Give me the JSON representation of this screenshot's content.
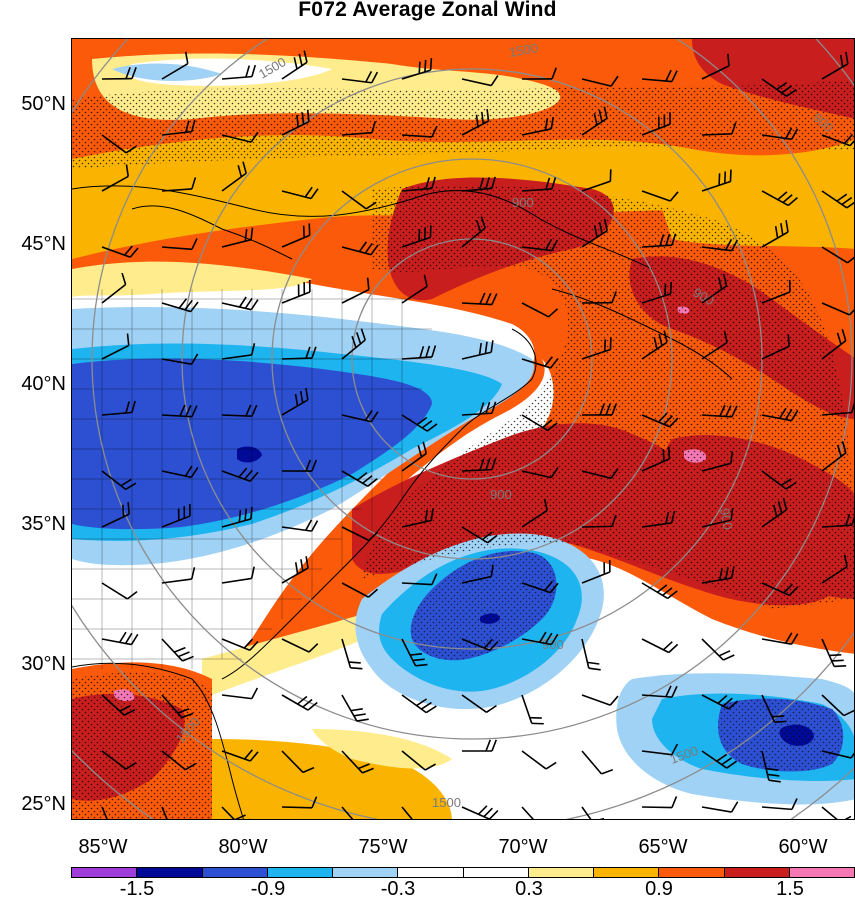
{
  "title": "F072 Average Zonal Wind",
  "axes": {
    "lat_labels": [
      "50°N",
      "45°N",
      "40°N",
      "35°N",
      "30°N",
      "25°N"
    ],
    "lon_labels": [
      "85°W",
      "80°W",
      "75°W",
      "70°W",
      "65°W",
      "60°W"
    ]
  },
  "contour_labels": [
    "1500",
    "1500",
    "900",
    "900",
    "900",
    "900",
    "900",
    "900",
    "1500",
    "1500",
    "1500"
  ],
  "colorbar": {
    "colors": [
      "#a03cd8",
      "#000a96",
      "#2d50d2",
      "#1eb4f0",
      "#a0d2f5",
      "#ffffff",
      "#ffffff",
      "#ffec8c",
      "#fab400",
      "#fa5a0a",
      "#c81e1e",
      "#f578b4"
    ],
    "labels": [
      "-1.5",
      "-0.9",
      "-0.3",
      "0.3",
      "0.9",
      "1.5"
    ]
  },
  "legend_colors": {
    "strong_negative": "#000a96",
    "negative": "#2d50d2",
    "moderate_negative": "#1eb4f0",
    "weak_negative": "#a0d2f5",
    "neutral": "#ffffff",
    "weak_positive": "#ffec8c",
    "moderate_positive": "#fab400",
    "positive": "#fa5a0a",
    "strong_positive": "#c81e1e",
    "extreme_positive": "#f578b4"
  }
}
